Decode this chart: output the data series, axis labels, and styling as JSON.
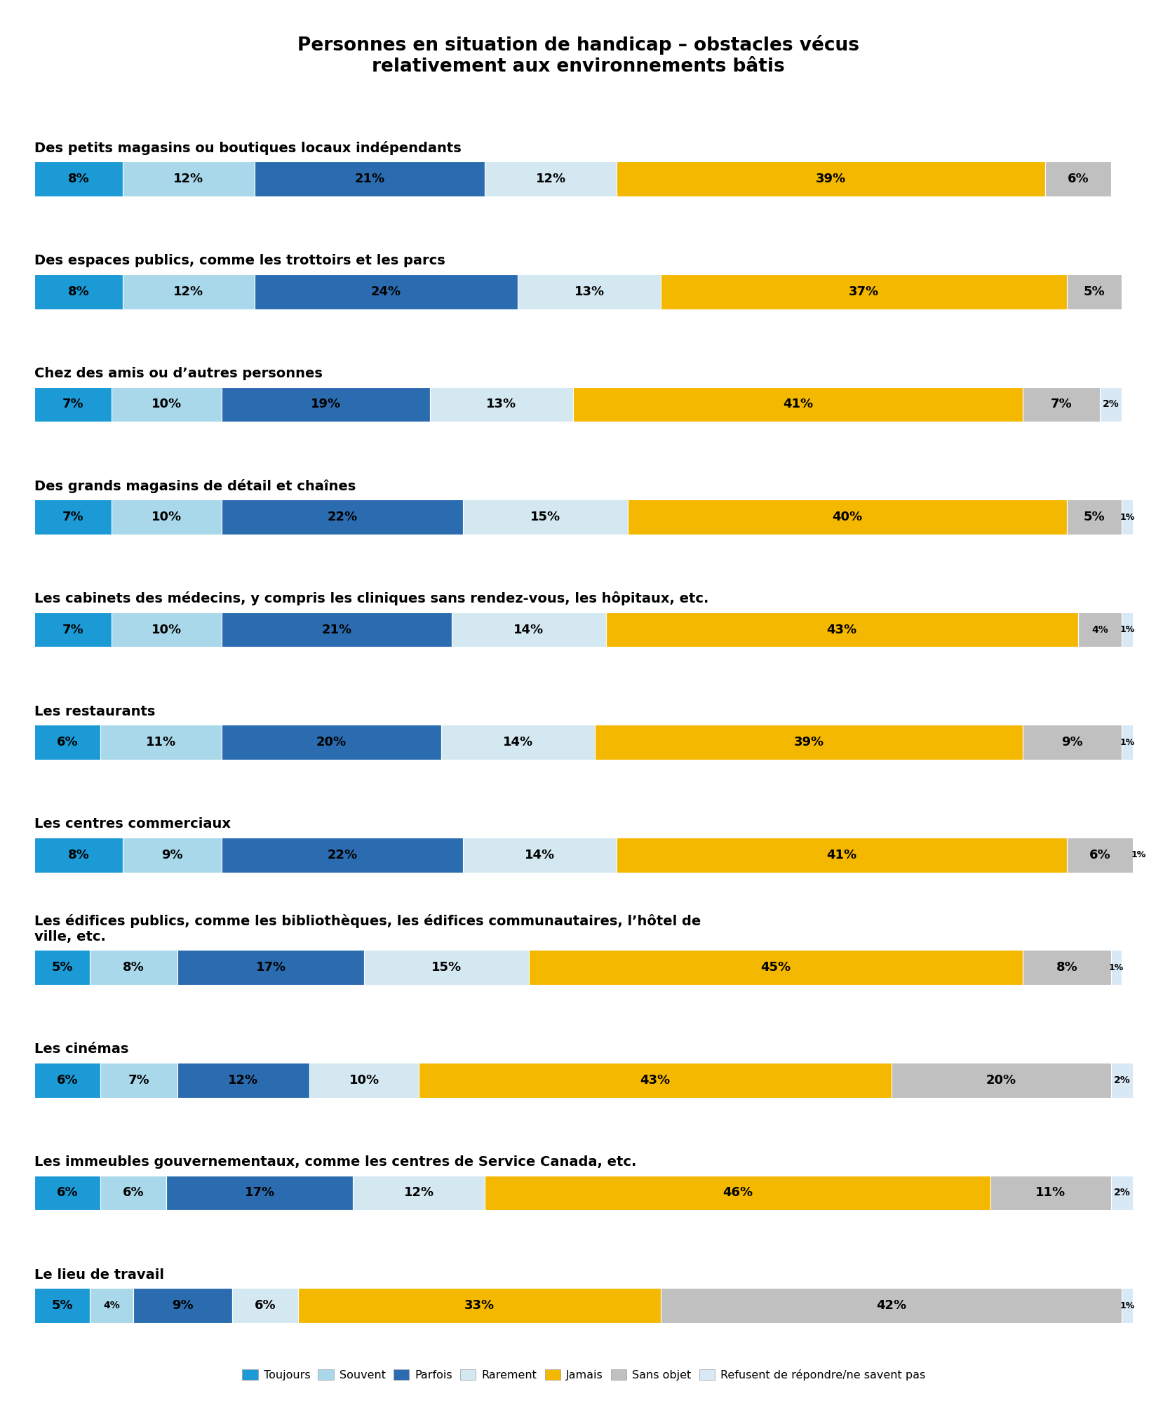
{
  "title": "Personnes en situation de handicap – obstacles vécus\nrelativement aux environnements bâtis",
  "categories": [
    "Des petits magasins ou boutiques locaux indépendants",
    "Des espaces publics, comme les trottoirs et les parcs",
    "Chez des amis ou d’autres personnes",
    "Des grands magasins de détail et chaînes",
    "Les cabinets des médecins, y compris les cliniques sans rendez-vous, les hôpitaux, etc.",
    "Les restaurants",
    "Les centres commerciaux",
    "Les édifices publics, comme les bibliothèques, les édifices communautaires, l’hôtel de\nville, etc.",
    "Les cinémas",
    "Les immeubles gouvernementaux, comme les centres de Service Canada, etc.",
    "Le lieu de travail"
  ],
  "series": {
    "Toujours": [
      8,
      8,
      7,
      7,
      7,
      6,
      8,
      5,
      6,
      6,
      5
    ],
    "Souvent": [
      12,
      12,
      10,
      10,
      10,
      11,
      9,
      8,
      7,
      6,
      4
    ],
    "Parfois": [
      21,
      24,
      19,
      22,
      21,
      20,
      22,
      17,
      12,
      17,
      9
    ],
    "Rarement": [
      12,
      13,
      13,
      15,
      14,
      14,
      14,
      15,
      10,
      12,
      6
    ],
    "Jamais": [
      39,
      37,
      41,
      40,
      43,
      39,
      41,
      45,
      43,
      46,
      33
    ],
    "Sans objet": [
      6,
      5,
      7,
      5,
      4,
      9,
      6,
      8,
      20,
      11,
      42
    ],
    "Refusent de répondre/ne savent pas": [
      0,
      0,
      2,
      1,
      1,
      1,
      1,
      1,
      2,
      2,
      1
    ]
  },
  "colors": {
    "Toujours": "#1B9AD6",
    "Souvent": "#A8D8EA",
    "Parfois": "#2B6CB0",
    "Rarement": "#D3E8F0",
    "Jamais": "#F5B800",
    "Sans objet": "#C0C0C0",
    "Refusent de répondre/ne savent pas": "#D8E8F5"
  },
  "bar_height": 0.62,
  "label_fontsize": 13,
  "title_fontsize": 19,
  "cat_fontsize": 14,
  "background_color": "#FFFFFF"
}
